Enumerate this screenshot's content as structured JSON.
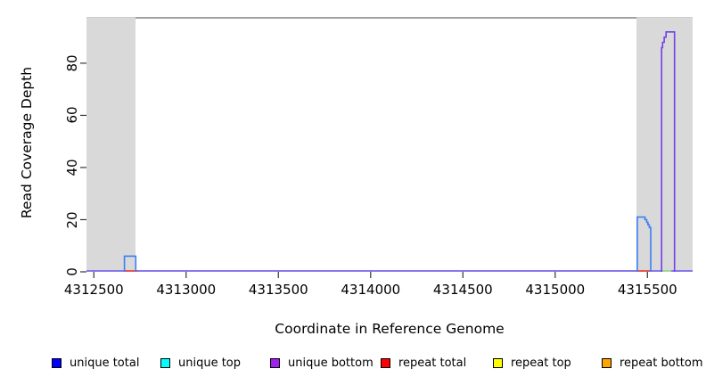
{
  "chart_data": {
    "type": "line",
    "title": "",
    "xlabel": "Coordinate in Reference Genome",
    "ylabel": "Read Coverage Depth",
    "xlim": [
      4312460,
      4315745
    ],
    "ylim": [
      0,
      97.4
    ],
    "x_ticks": [
      4312500,
      4313000,
      4313500,
      4314000,
      4314500,
      4315000,
      4315500
    ],
    "y_ticks": [
      0,
      20,
      40,
      60,
      80
    ],
    "grid": false,
    "shade_color": "#d9d9d9",
    "box_line_color": "#828282",
    "shaded_regions": [
      {
        "x0": 4312460,
        "x1": 4312726
      },
      {
        "x0": 4315440,
        "x1": 4315745
      }
    ],
    "baseline": {
      "y": 0,
      "color": "#8678ea"
    },
    "baseline_segments": [
      {
        "name": "repeat-coverage-left",
        "color": "#e25552",
        "x0": 4312663,
        "x1": 4312737,
        "y": 0
      },
      {
        "name": "repeat-coverage-right",
        "color": "#e25552",
        "x0": 4315442,
        "x1": 4315512,
        "y": 0
      },
      {
        "name": "repeat-coverage-under-peak",
        "color": "#a0d890",
        "x0": 4315582,
        "x1": 4315630,
        "y": 0
      }
    ],
    "series": [
      {
        "name": "unique-coverage-peak-left",
        "color": "#3b7ef3",
        "points": [
          [
            4312666,
            0
          ],
          [
            4312666,
            6
          ],
          [
            4312727,
            6
          ],
          [
            4312727,
            0
          ]
        ]
      },
      {
        "name": "unique-coverage-peak-mid",
        "color": "#3b7ef3",
        "points": [
          [
            4315445,
            0
          ],
          [
            4315445,
            21
          ],
          [
            4315487,
            21
          ],
          [
            4315487,
            20
          ],
          [
            4315496,
            20
          ],
          [
            4315496,
            19
          ],
          [
            4315503,
            19
          ],
          [
            4315503,
            18
          ],
          [
            4315510,
            18
          ],
          [
            4315510,
            17
          ],
          [
            4315518,
            17
          ],
          [
            4315518,
            0
          ]
        ]
      },
      {
        "name": "unique-coverage-peak-right",
        "color": "#7040e8",
        "points": [
          [
            4315577,
            0
          ],
          [
            4315577,
            86
          ],
          [
            4315582,
            86
          ],
          [
            4315582,
            88
          ],
          [
            4315591,
            88
          ],
          [
            4315591,
            90
          ],
          [
            4315601,
            90
          ],
          [
            4315601,
            92
          ],
          [
            4315616,
            92
          ],
          [
            4315647,
            92
          ],
          [
            4315647,
            0
          ]
        ]
      }
    ],
    "legend": [
      {
        "label": "unique total",
        "color": "#0000ff"
      },
      {
        "label": "unique top",
        "color": "#00ffff"
      },
      {
        "label": "unique bottom",
        "color": "#a020f0"
      },
      {
        "label": "repeat total",
        "color": "#ff0000"
      },
      {
        "label": "repeat top",
        "color": "#ffff00"
      },
      {
        "label": "repeat bottom",
        "color": "#ffa500"
      }
    ]
  }
}
